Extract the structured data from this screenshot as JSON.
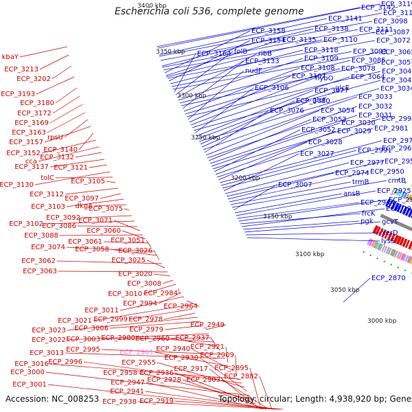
{
  "title": "Escherichia coli 536, complete genome",
  "footer": {
    "accession": "Accession: NC_008253",
    "summary": "Topology: circular; Length: 4,938,920 bp; Genes: 4,722"
  },
  "colors": {
    "forward_genes": "#e01010",
    "reverse_genes": "#1010e0",
    "backbone": "#888888",
    "label_forward": "#cc0000",
    "label_reverse": "#0000cc",
    "label_rna": "#e080e0"
  },
  "ticks": [
    "3400 kbp",
    "3350 kbp",
    "3300 kbp",
    "3250 kbp",
    "3200 kbp",
    "3150 kbp",
    "3100 kbp",
    "3050 kbp",
    "3000 kbp"
  ],
  "right_labels": [
    {
      "t": "ECP_3142"
    },
    {
      "t": "ECP_3119"
    },
    {
      "t": "ECP_3141"
    },
    {
      "t": "ECP_3116"
    },
    {
      "t": "ECP_3098"
    },
    {
      "t": "ECP_3138"
    },
    {
      "t": "ECP_3111"
    },
    {
      "t": "ECP_3087"
    },
    {
      "t": "ECP_3158"
    },
    {
      "t": "ECP_3135"
    },
    {
      "t": "ECP_3110"
    },
    {
      "t": "ECP_3072"
    },
    {
      "t": "ECP_3154"
    },
    {
      "t": "ECP_3118"
    },
    {
      "t": "ECP_3093"
    },
    {
      "t": "ECP_3065"
    },
    {
      "t": "ECP_3164"
    },
    {
      "t": "folB"
    },
    {
      "t": "ribB"
    },
    {
      "t": "ECP_3109"
    },
    {
      "t": "ECP_3085"
    },
    {
      "t": "ECP_3057"
    },
    {
      "t": "ECP_3133"
    },
    {
      "t": "ECP_3108"
    },
    {
      "t": "ECP_3078"
    },
    {
      "t": "ECP_3047"
    },
    {
      "t": "nudF"
    },
    {
      "t": "ECP_3107"
    },
    {
      "t": "hybO"
    },
    {
      "t": "ECP_3064"
    },
    {
      "t": "ECP_3040"
    },
    {
      "t": "ECP_3106"
    },
    {
      "t": "ECP_3077"
    },
    {
      "t": "glcE"
    },
    {
      "t": "ECP_3034"
    },
    {
      "t": "ECP_3080"
    },
    {
      "t": "glcF"
    },
    {
      "t": "ECP_3033"
    },
    {
      "t": "ECP_3076"
    },
    {
      "t": "ECP_3054"
    },
    {
      "t": "ECP_3032"
    },
    {
      "t": "ECP_3053"
    },
    {
      "t": "ECP_3031"
    },
    {
      "t": "ECP_3030"
    },
    {
      "t": "ECP_2992"
    },
    {
      "t": "ECP_3052"
    },
    {
      "t": "ECP_3029"
    },
    {
      "t": "ECP_2981"
    },
    {
      "t": "ECP_3028"
    },
    {
      "t": "ECP_2971"
    },
    {
      "t": "ECP_2991"
    },
    {
      "t": "ECP_2965"
    },
    {
      "t": "ECP_3027"
    },
    {
      "t": "ECP_2977"
    },
    {
      "t": "ECP_2952"
    },
    {
      "t": "ECP_2974"
    },
    {
      "t": "ECP_2950"
    },
    {
      "t": "trmB"
    },
    {
      "t": "cmtB"
    },
    {
      "t": "ECP_3007"
    },
    {
      "t": "ansB"
    },
    {
      "t": "ECP_2925"
    },
    {
      "t": "ECP_2944"
    },
    {
      "t": "ECP_2916"
    },
    {
      "t": "frcK"
    },
    {
      "t": "ECP_2910"
    },
    {
      "t": "pgk"
    },
    {
      "t": "gcvT"
    },
    {
      "t": "xerD"
    },
    {
      "t": "lysS"
    },
    {
      "t": "ECP_2870"
    }
  ],
  "left_labels": [
    {
      "t": "kbaY"
    },
    {
      "t": "ECP_3213"
    },
    {
      "t": "ECP_3202"
    },
    {
      "t": "ECP_3193"
    },
    {
      "t": "ECP_3180"
    },
    {
      "t": "ECP_3172"
    },
    {
      "t": "ECP_3169"
    },
    {
      "t": "ECP_3163"
    },
    {
      "t": "rpsU"
    },
    {
      "t": "ECP_3157"
    },
    {
      "t": "ECP_3140"
    },
    {
      "t": "ECP_3152"
    },
    {
      "t": "cca"
    },
    {
      "t": "ECP_3132"
    },
    {
      "t": "ECP_3137"
    },
    {
      "t": "ECP_3121"
    },
    {
      "t": "ECP_3130"
    },
    {
      "t": "tolC"
    },
    {
      "t": "ECP_3105"
    },
    {
      "t": "ECP_3112"
    },
    {
      "t": "ECP_3097"
    },
    {
      "t": "ECP_3103"
    },
    {
      "t": "dkgA"
    },
    {
      "t": "ECP_3075"
    },
    {
      "t": "ECP_3092"
    },
    {
      "t": "ECP_3102"
    },
    {
      "t": "ECP_3086"
    },
    {
      "t": "ECP_3071"
    },
    {
      "t": "ECP_3088"
    },
    {
      "t": "ECP_3060"
    },
    {
      "t": "ECP_3061"
    },
    {
      "t": "ECP_3051"
    },
    {
      "t": "ECP_3074"
    },
    {
      "t": "ECP_3058"
    },
    {
      "t": "ECP_3026"
    },
    {
      "t": "ECP_3062"
    },
    {
      "t": "ECP_3025"
    },
    {
      "t": "ECP_3063"
    },
    {
      "t": "ECP_3020"
    },
    {
      "t": "ECP_3008"
    },
    {
      "t": "ECP_3010"
    },
    {
      "t": "ECP_2984"
    },
    {
      "t": "ECP_2994"
    },
    {
      "t": "ECP_3011"
    },
    {
      "t": "ECP_2964"
    },
    {
      "t": "ECP_3021"
    },
    {
      "t": "ECP_2999"
    },
    {
      "t": "ECP_2978"
    },
    {
      "t": "ECP_3023"
    },
    {
      "t": "ECP_3006"
    },
    {
      "t": "ECP_2979"
    },
    {
      "t": "ECP_2949"
    },
    {
      "t": "ECP_3022"
    },
    {
      "t": "ECP_3003"
    },
    {
      "t": "ECP_2980"
    },
    {
      "t": "ECP_2960"
    },
    {
      "t": "ECP_2937"
    },
    {
      "t": "ECP_2995"
    },
    {
      "t": "ECP_3013"
    },
    {
      "t": "ECP_2921"
    },
    {
      "t": "ECP_2961"
    },
    {
      "t": "ECP_2940"
    },
    {
      "t": "ECP_2909"
    },
    {
      "t": "ECP_3016"
    },
    {
      "t": "ECP_2996"
    },
    {
      "t": "ECP_2955"
    },
    {
      "t": "ECP_2930"
    },
    {
      "t": "ECP_3000"
    },
    {
      "t": "ECP_2958"
    },
    {
      "t": "ECP_2936"
    },
    {
      "t": "ECP_2917"
    },
    {
      "t": "ECP_2895"
    },
    {
      "t": "ECP_2947"
    },
    {
      "t": "ECP_2928"
    },
    {
      "t": "ECP_2903"
    },
    {
      "t": "ECP_2882"
    },
    {
      "t": "ECP_3001"
    },
    {
      "t": "ECP_2941"
    },
    {
      "t": "ECP_2938"
    },
    {
      "t": "ECP_2919"
    }
  ]
}
